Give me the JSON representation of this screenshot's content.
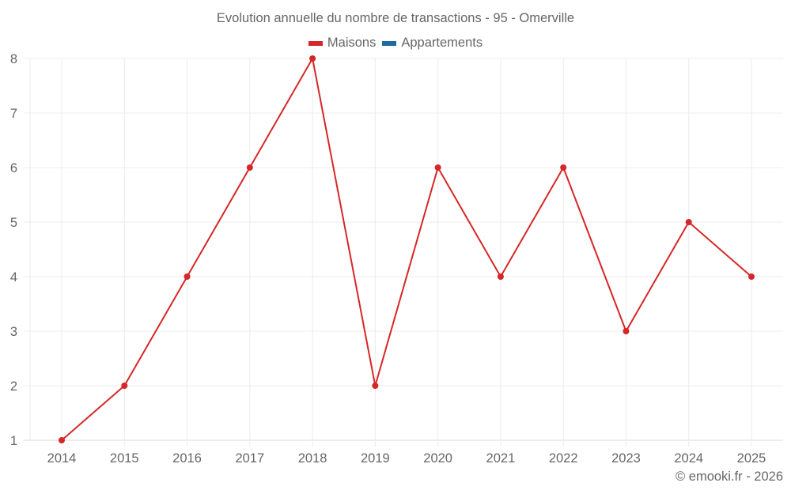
{
  "chart_data": {
    "type": "line",
    "title": "Evolution annuelle du nombre de transactions - 95 - Omerville",
    "xlabel": "",
    "ylabel": "",
    "categories": [
      "2014",
      "2015",
      "2016",
      "2017",
      "2018",
      "2019",
      "2020",
      "2021",
      "2022",
      "2023",
      "2024",
      "2025"
    ],
    "series": [
      {
        "name": "Maisons",
        "color": "#d62728",
        "values": [
          1,
          2,
          4,
          6,
          8,
          2,
          6,
          4,
          6,
          3,
          5,
          4
        ]
      },
      {
        "name": "Appartements",
        "color": "#1f6aa0",
        "values": []
      }
    ],
    "yticks": [
      1,
      2,
      3,
      4,
      5,
      6,
      7,
      8
    ],
    "ylim": [
      1,
      8
    ],
    "grid": true,
    "legend_position": "top"
  },
  "legend": {
    "items": [
      {
        "label": "Maisons",
        "color": "#d62728"
      },
      {
        "label": "Appartements",
        "color": "#1f6aa0"
      }
    ]
  },
  "credit": "© emooki.fr - 2026"
}
